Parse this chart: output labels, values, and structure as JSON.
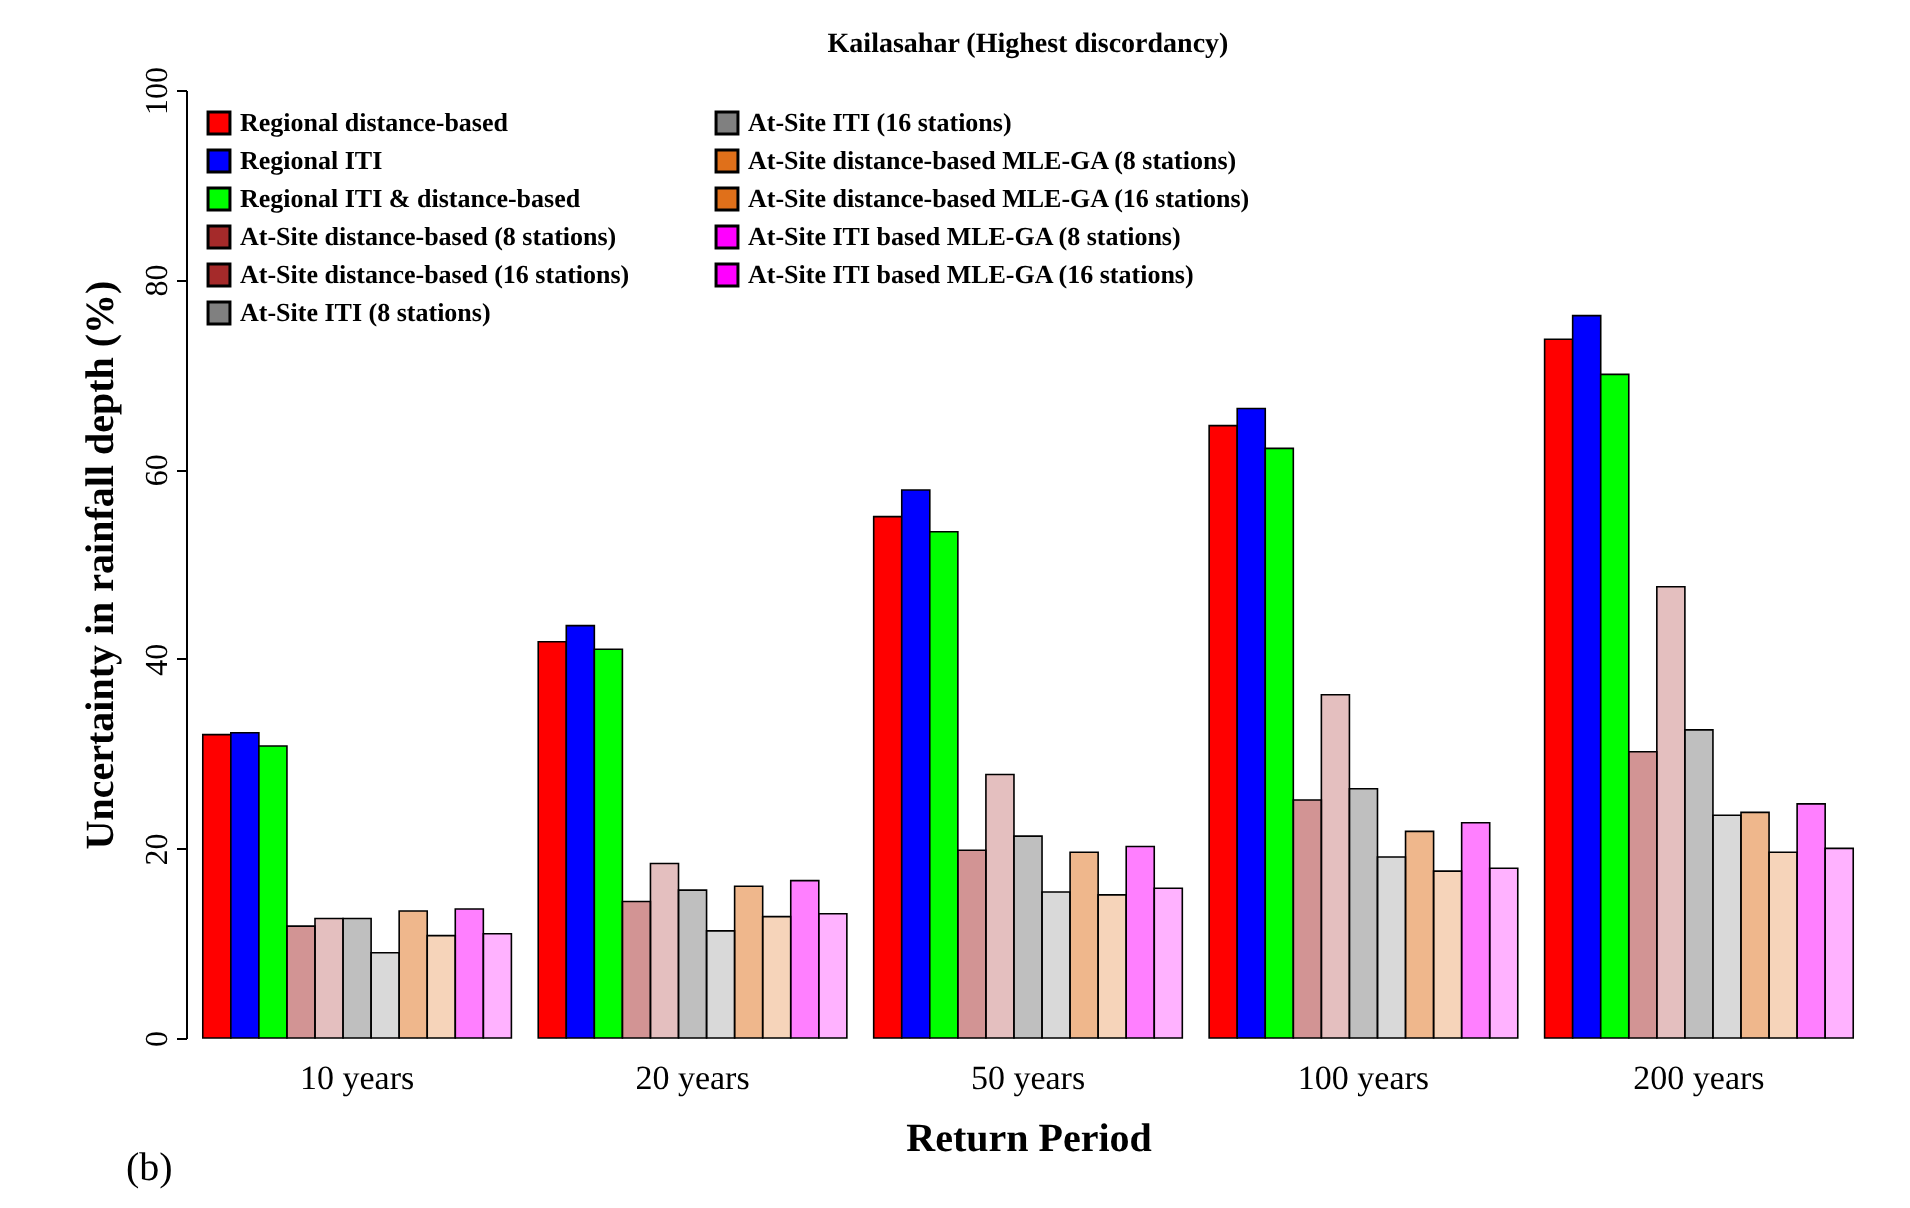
{
  "chart_data": {
    "type": "bar",
    "title": "Kailasahar (Highest discordancy)",
    "xlabel": "Return Period",
    "ylabel": "Uncertainty in rainfall depth (%)",
    "categories": [
      "10 years",
      "20 years",
      "50 years",
      "100 years",
      "200 years"
    ],
    "ylim": [
      0,
      100
    ],
    "yticks": [
      0,
      20,
      40,
      60,
      80,
      100
    ],
    "grid": false,
    "legend": "top left",
    "annotations": [
      "(b)"
    ],
    "series": [
      {
        "name": "Regional distance-based",
        "color": "#ff0000",
        "values": [
          32.0,
          41.8,
          55.0,
          64.6,
          73.7
        ]
      },
      {
        "name": "Regional ITI",
        "color": "#0000ff",
        "values": [
          32.2,
          43.5,
          57.8,
          66.4,
          76.2
        ]
      },
      {
        "name": "Regional ITI & distance-based",
        "color": "#00ff00",
        "values": [
          30.8,
          41.0,
          53.4,
          62.2,
          70.0
        ]
      },
      {
        "name": "At-Site distance-based (8 stations)",
        "color": "#a52a2a",
        "values": [
          11.8,
          14.4,
          19.8,
          25.1,
          30.2
        ]
      },
      {
        "name": "At-Site distance-based (16 stations)",
        "color": "#a52a2a",
        "values": [
          12.6,
          18.4,
          27.8,
          36.2,
          47.6
        ]
      },
      {
        "name": "At-Site ITI (8 stations)",
        "color": "#808080",
        "values": [
          12.6,
          15.6,
          21.3,
          26.3,
          32.5
        ]
      },
      {
        "name": "At-Site ITI (16 stations)",
        "color": "#808080",
        "values": [
          9.0,
          11.3,
          15.4,
          19.1,
          23.5
        ]
      },
      {
        "name": "At-Site distance-based MLE-GA (8 stations)",
        "color": "#e0701a",
        "values": [
          13.4,
          16.0,
          19.6,
          21.8,
          23.8
        ]
      },
      {
        "name": "At-Site distance-based MLE-GA (16 stations)",
        "color": "#e0701a",
        "values": [
          10.8,
          12.8,
          15.1,
          17.6,
          19.6
        ]
      },
      {
        "name": "At-Site ITI based MLE-GA (8 stations)",
        "color": "#ff00ff",
        "values": [
          13.6,
          16.6,
          20.2,
          22.7,
          24.7
        ]
      },
      {
        "name": "At-Site ITI based MLE-GA (16 stations)",
        "color": "#ff00ff",
        "values": [
          11.0,
          13.1,
          15.8,
          17.9,
          20.0
        ]
      }
    ]
  }
}
